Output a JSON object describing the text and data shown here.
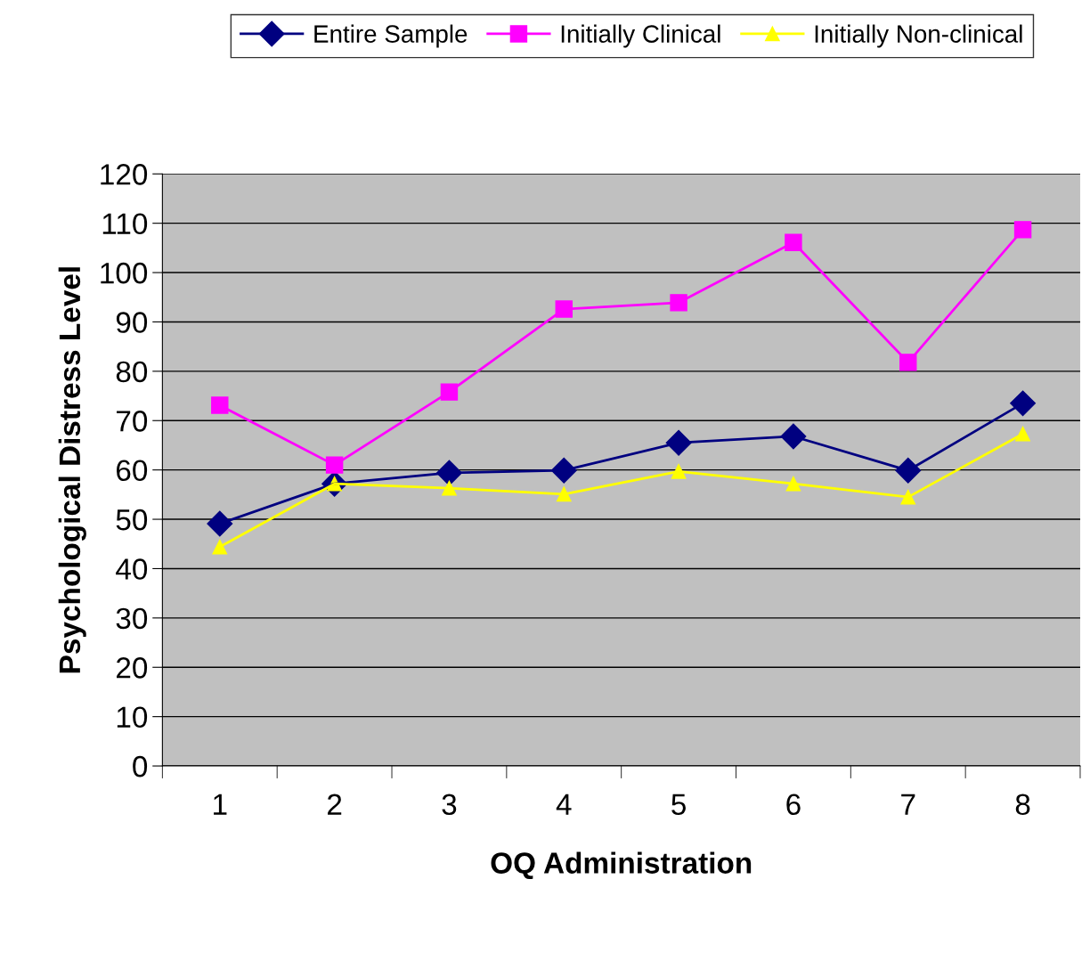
{
  "chart_data": {
    "type": "line",
    "xlabel": "OQ Administration",
    "ylabel": "Psychological Distress Level",
    "categories": [
      "1",
      "2",
      "3",
      "4",
      "5",
      "6",
      "7",
      "8"
    ],
    "series": [
      {
        "name": "Entire Sample",
        "color": "#000080",
        "marker": "diamond",
        "values": [
          49.1,
          57.2,
          59.4,
          59.9,
          65.5,
          66.8,
          59.9,
          73.5
        ]
      },
      {
        "name": "Initially Clinical",
        "color": "#ff00ff",
        "marker": "square",
        "values": [
          73.1,
          61.0,
          75.8,
          92.6,
          93.9,
          106.1,
          81.8,
          108.7
        ]
      },
      {
        "name": "Initially Non-clinical",
        "color": "#ffff00",
        "marker": "triangle",
        "values": [
          44.4,
          57.2,
          56.3,
          55.1,
          59.7,
          57.2,
          54.5,
          67.3
        ]
      }
    ],
    "ylim": [
      0,
      120
    ],
    "yticks": [
      0,
      10,
      20,
      30,
      40,
      50,
      60,
      70,
      80,
      90,
      100,
      110,
      120
    ],
    "grid": "y",
    "legend": "top",
    "line_style": "solid"
  }
}
